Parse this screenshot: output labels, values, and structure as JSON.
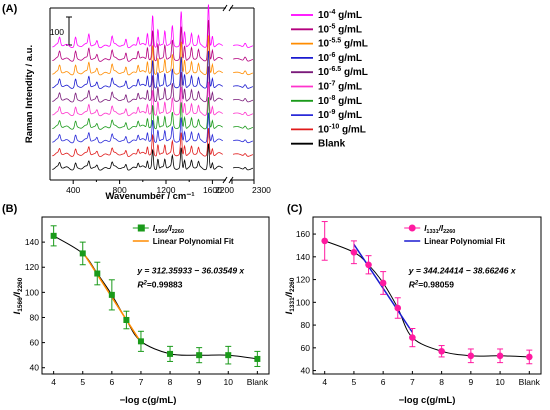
{
  "chart_data": [
    {
      "panel": "(A)",
      "type": "line",
      "title": "",
      "xlabel": "Wavenumber / cm⁻¹",
      "ylabel": "Raman Intendity / a.u.",
      "x_ticks": [
        "400",
        "800",
        "1200",
        "1600",
        "2200",
        "2300"
      ],
      "x_break_after": 1700,
      "x_break_resume": 2200,
      "xlim": [
        200,
        2300
      ],
      "scale_bar_label": "100",
      "legend_position": "right",
      "series": [
        {
          "name_base": "10",
          "name_exp": "-4",
          "name_unit": " g/mL",
          "color": "#ff00ff",
          "offset": 10
        },
        {
          "name_base": "10",
          "name_exp": "-5",
          "name_unit": " g/mL",
          "color": "#b4007e",
          "offset": 9
        },
        {
          "name_base": "10",
          "name_exp": "-5.5",
          "name_unit": " g/mL",
          "color": "#ff8c00",
          "offset": 8
        },
        {
          "name_base": "10",
          "name_exp": "-6",
          "name_unit": " g/mL",
          "color": "#1a1ad0",
          "offset": 7
        },
        {
          "name_base": "10",
          "name_exp": "-6.5",
          "name_unit": " g/mL",
          "color": "#7a1a7a",
          "offset": 6
        },
        {
          "name_base": "10",
          "name_exp": "-7",
          "name_unit": " g/mL",
          "color": "#ff33cc",
          "offset": 5
        },
        {
          "name_base": "10",
          "name_exp": "-8",
          "name_unit": " g/mL",
          "color": "#1a9a1a",
          "offset": 4
        },
        {
          "name_base": "10",
          "name_exp": "-9",
          "name_unit": " g/mL",
          "color": "#2a2ad8",
          "offset": 3
        },
        {
          "name_base": "10",
          "name_exp": "-10",
          "name_unit": " g/mL",
          "color": "#e01a1a",
          "offset": 2
        },
        {
          "name_base": "Blank",
          "name_exp": "",
          "name_unit": "",
          "color": "#000000",
          "offset": 1
        }
      ],
      "peaks": [
        {
          "x": 283,
          "h": 10,
          "w": 7
        },
        {
          "x": 420,
          "h": 12,
          "w": 7
        },
        {
          "x": 535,
          "h": 15,
          "w": 7
        },
        {
          "x": 605,
          "h": 7,
          "w": 7
        },
        {
          "x": 735,
          "h": 12,
          "w": 7
        },
        {
          "x": 855,
          "h": 10,
          "w": 7
        },
        {
          "x": 960,
          "h": 12,
          "w": 7
        },
        {
          "x": 1040,
          "h": 18,
          "w": 6
        },
        {
          "x": 1085,
          "h": 42,
          "w": 6
        },
        {
          "x": 1130,
          "h": 25,
          "w": 6
        },
        {
          "x": 1190,
          "h": 20,
          "w": 6
        },
        {
          "x": 1255,
          "h": 26,
          "w": 6
        },
        {
          "x": 1331,
          "h": 48,
          "w": 6
        },
        {
          "x": 1360,
          "h": 22,
          "w": 6
        },
        {
          "x": 1420,
          "h": 15,
          "w": 6
        },
        {
          "x": 1480,
          "h": 12,
          "w": 6
        },
        {
          "x": 1566,
          "h": 58,
          "w": 6
        },
        {
          "x": 1600,
          "h": 15,
          "w": 6
        },
        {
          "x": 2260,
          "h": 6,
          "w": 5
        }
      ]
    },
    {
      "panel": "(B)",
      "type": "scatter",
      "xlabel": "−log c(g/mL)",
      "ylabel_main": "I",
      "ylabel_sub1": "1566",
      "ylabel_mid": "/I",
      "ylabel_sub2": "2260",
      "categories": [
        "4",
        "5",
        "5.5",
        "6",
        "6.5",
        "7",
        "8",
        "9",
        "10",
        "Blank"
      ],
      "x_tick_labels": [
        "4",
        "5",
        "6",
        "7",
        "8",
        "9",
        "10",
        "Blank"
      ],
      "x_tick_values": [
        4,
        5,
        6,
        7,
        8,
        9,
        10,
        11
      ],
      "x": [
        4,
        5,
        5.5,
        6,
        6.5,
        7,
        8,
        9,
        10,
        11
      ],
      "y": [
        145,
        131,
        115,
        98,
        78,
        61,
        51,
        50,
        50,
        47
      ],
      "err": [
        8,
        9,
        9,
        12,
        7,
        8,
        6,
        6,
        7,
        6
      ],
      "ylim": [
        35,
        160
      ],
      "y_ticks": [
        40,
        60,
        80,
        100,
        120,
        140
      ],
      "marker": "square",
      "marker_color": "#1a9a1a",
      "fit_color": "#ff8c00",
      "fit_range": [
        5,
        7
      ],
      "fit_intercept": 312.35933,
      "fit_slope": -36.03549,
      "legend_series_main": "I",
      "legend_series_sub1": "1566",
      "legend_series_mid": "/I",
      "legend_series_sub2": "2260",
      "legend_fit": "Linear Polynomial Fit",
      "equation": "y = 312.35933 − 36.03549 x",
      "r2_label": "R",
      "r2_sup": "2",
      "r2_value": "=0.99883"
    },
    {
      "panel": "(C)",
      "type": "scatter",
      "xlabel": "−log c(g/mL)",
      "ylabel_main": "I",
      "ylabel_sub1": "1331",
      "ylabel_mid": "/I",
      "ylabel_sub2": "2260",
      "categories": [
        "4",
        "5",
        "5.5",
        "6",
        "6.5",
        "7",
        "8",
        "9",
        "10",
        "Blank"
      ],
      "x_tick_labels": [
        "4",
        "5",
        "6",
        "7",
        "8",
        "9",
        "10",
        "Blank"
      ],
      "x_tick_values": [
        4,
        5,
        6,
        7,
        8,
        9,
        10,
        11
      ],
      "x": [
        4,
        5,
        5.5,
        6,
        6.5,
        7,
        8,
        9,
        10,
        11
      ],
      "y": [
        154,
        144,
        133,
        117,
        95,
        69,
        57,
        53,
        53,
        52
      ],
      "err": [
        17,
        10,
        8,
        10,
        9,
        8,
        5,
        6,
        6,
        6
      ],
      "ylim": [
        37,
        175
      ],
      "y_ticks": [
        40,
        60,
        80,
        100,
        120,
        140,
        160
      ],
      "marker": "circle",
      "marker_color": "#ff1aa0",
      "fit_color": "#1a1ad0",
      "fit_range": [
        5,
        7
      ],
      "fit_intercept": 344.24414,
      "fit_slope": -38.66246,
      "legend_series_main": "I",
      "legend_series_sub1": "1331",
      "legend_series_mid": "/I",
      "legend_series_sub2": "2260",
      "legend_fit": "Linear Polynomial Fit",
      "equation": "y = 344.24414 − 38.66246 x",
      "r2_label": "R",
      "r2_sup": "2",
      "r2_value": "=0.98059"
    }
  ]
}
